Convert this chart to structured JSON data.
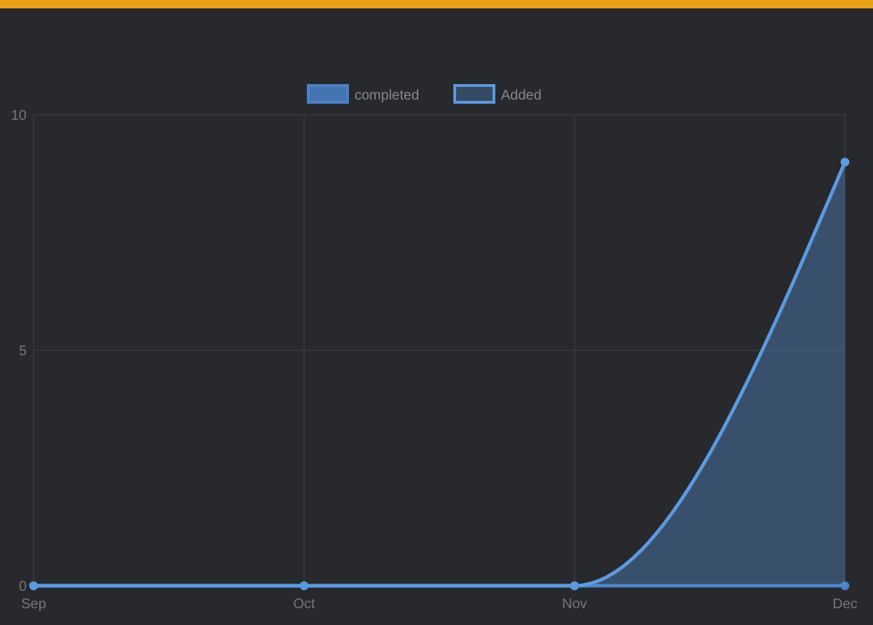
{
  "chart_data": {
    "type": "area",
    "categories": [
      "Sep",
      "Oct",
      "Nov",
      "Dec"
    ],
    "series": [
      {
        "name": "completed",
        "type": "line",
        "color": "#4a82c8",
        "values": [
          0,
          0,
          0,
          0
        ]
      },
      {
        "name": "Added",
        "color": "#5a9ae0",
        "values": [
          0,
          0,
          0,
          9
        ]
      }
    ],
    "ylim": [
      0,
      10
    ],
    "yticks": [
      0,
      5,
      10
    ],
    "grid": true,
    "legend": "top",
    "marker": "circle"
  }
}
